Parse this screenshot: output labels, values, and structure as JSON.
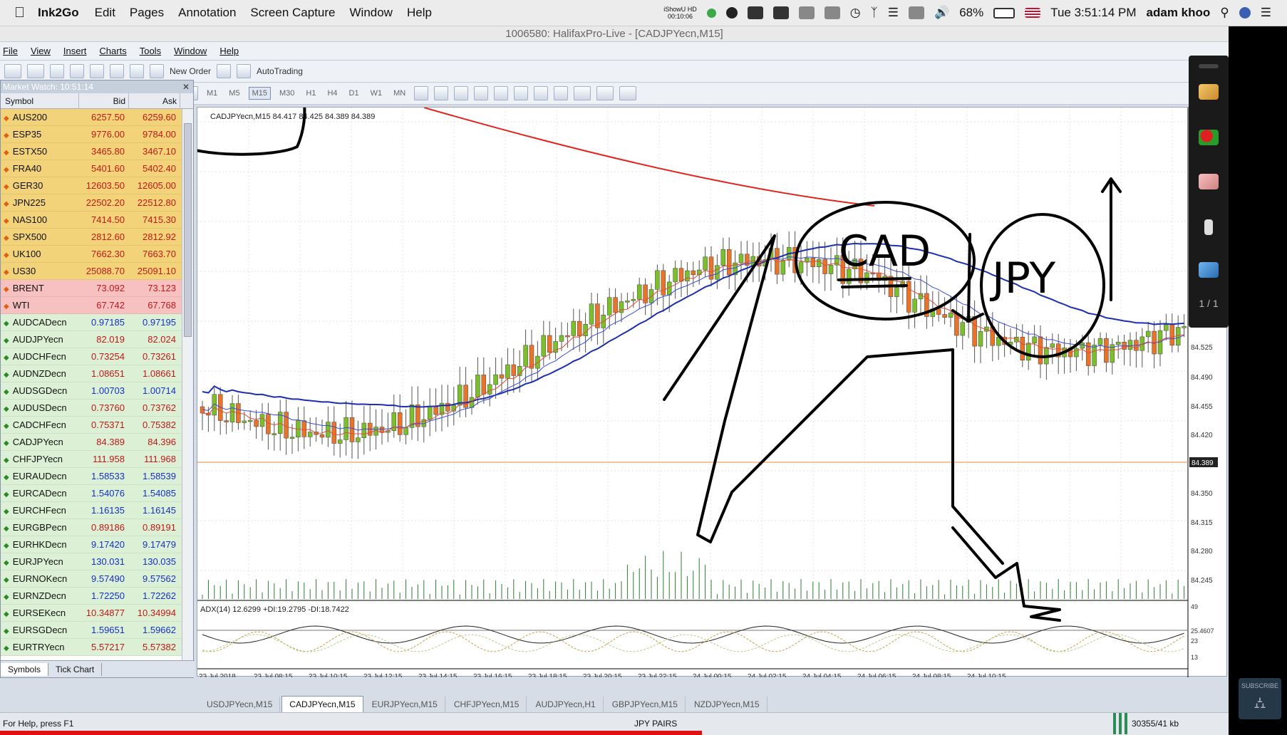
{
  "mac_menu": {
    "app_name": "Ink2Go",
    "items": [
      "Edit",
      "Pages",
      "Annotation",
      "Screen Capture",
      "Window",
      "Help"
    ],
    "showhd_label": "iShowU HD",
    "showhd_time": "00:10:06",
    "battery": "68%",
    "clock": "Tue 3:51:14 PM",
    "user": "adam khoo"
  },
  "window": {
    "title": "1006580: HalifaxPro-Live - [CADJPYecn,M15]"
  },
  "mt4_menu": [
    "File",
    "View",
    "Insert",
    "Charts",
    "Tools",
    "Window",
    "Help"
  ],
  "toolbar1": {
    "new_order": "New Order",
    "autotrading": "AutoTrading"
  },
  "toolbar2": {
    "periods": [
      "M1",
      "M5",
      "M15",
      "M30",
      "H1",
      "H4",
      "D1",
      "W1",
      "MN"
    ],
    "selected_period": "M15"
  },
  "market_watch": {
    "title": "Market Watch: 10:51:14",
    "columns": [
      "Symbol",
      "Bid",
      "Ask"
    ],
    "rows": [
      {
        "symbol": "AUS200",
        "bid": "6257.50",
        "ask": "6259.60",
        "type": "idx"
      },
      {
        "symbol": "ESP35",
        "bid": "9776.00",
        "ask": "9784.00",
        "type": "idx"
      },
      {
        "symbol": "ESTX50",
        "bid": "3465.80",
        "ask": "3467.10",
        "type": "idx"
      },
      {
        "symbol": "FRA40",
        "bid": "5401.60",
        "ask": "5402.40",
        "type": "idx"
      },
      {
        "symbol": "GER30",
        "bid": "12603.50",
        "ask": "12605.00",
        "type": "idx"
      },
      {
        "symbol": "JPN225",
        "bid": "22502.20",
        "ask": "22512.80",
        "type": "idx"
      },
      {
        "symbol": "NAS100",
        "bid": "7414.50",
        "ask": "7415.30",
        "type": "idx"
      },
      {
        "symbol": "SPX500",
        "bid": "2812.60",
        "ask": "2812.92",
        "type": "idx"
      },
      {
        "symbol": "UK100",
        "bid": "7662.30",
        "ask": "7663.70",
        "type": "idx"
      },
      {
        "symbol": "US30",
        "bid": "25088.70",
        "ask": "25091.10",
        "type": "idx"
      },
      {
        "symbol": "BRENT",
        "bid": "73.092",
        "ask": "73.123",
        "type": "cmd"
      },
      {
        "symbol": "WTI",
        "bid": "67.742",
        "ask": "67.768",
        "type": "cmd"
      },
      {
        "symbol": "AUDCADecn",
        "bid": "0.97185",
        "ask": "0.97195",
        "type": "fx"
      },
      {
        "symbol": "AUDJPYecn",
        "bid": "82.019",
        "ask": "82.024",
        "type": "fxr"
      },
      {
        "symbol": "AUDCHFecn",
        "bid": "0.73254",
        "ask": "0.73261",
        "type": "fxr"
      },
      {
        "symbol": "AUDNZDecn",
        "bid": "1.08651",
        "ask": "1.08661",
        "type": "fxr"
      },
      {
        "symbol": "AUDSGDecn",
        "bid": "1.00703",
        "ask": "1.00714",
        "type": "fx"
      },
      {
        "symbol": "AUDUSDecn",
        "bid": "0.73760",
        "ask": "0.73762",
        "type": "fxr"
      },
      {
        "symbol": "CADCHFecn",
        "bid": "0.75371",
        "ask": "0.75382",
        "type": "fxr"
      },
      {
        "symbol": "CADJPYecn",
        "bid": "84.389",
        "ask": "84.396",
        "type": "fxr"
      },
      {
        "symbol": "CHFJPYecn",
        "bid": "111.958",
        "ask": "111.968",
        "type": "fxr"
      },
      {
        "symbol": "EURAUDecn",
        "bid": "1.58533",
        "ask": "1.58539",
        "type": "fx"
      },
      {
        "symbol": "EURCADecn",
        "bid": "1.54076",
        "ask": "1.54085",
        "type": "fx"
      },
      {
        "symbol": "EURCHFecn",
        "bid": "1.16135",
        "ask": "1.16145",
        "type": "fx"
      },
      {
        "symbol": "EURGBPecn",
        "bid": "0.89186",
        "ask": "0.89191",
        "type": "fxr"
      },
      {
        "symbol": "EURHKDecn",
        "bid": "9.17420",
        "ask": "9.17479",
        "type": "fx"
      },
      {
        "symbol": "EURJPYecn",
        "bid": "130.031",
        "ask": "130.035",
        "type": "fx"
      },
      {
        "symbol": "EURNOKecn",
        "bid": "9.57490",
        "ask": "9.57562",
        "type": "fx"
      },
      {
        "symbol": "EURNZDecn",
        "bid": "1.72250",
        "ask": "1.72262",
        "type": "fx"
      },
      {
        "symbol": "EURSEKecn",
        "bid": "10.34877",
        "ask": "10.34994",
        "type": "fxr"
      },
      {
        "symbol": "EURSGDecn",
        "bid": "1.59651",
        "ask": "1.59662",
        "type": "fx"
      },
      {
        "symbol": "EURTRYecn",
        "bid": "5.57217",
        "ask": "5.57382",
        "type": "fxr"
      }
    ],
    "tabs": [
      "Symbols",
      "Tick Chart"
    ]
  },
  "chart": {
    "header": "CADJPYecn,M15  84.417 84.425 84.389 84.389",
    "current_price": "84.389",
    "price_ticks": [
      "84.525",
      "84.490",
      "84.455",
      "84.420",
      "84.350",
      "84.315",
      "84.280",
      "84.245"
    ],
    "time_ticks": [
      "23 Jul 2018",
      "23 Jul 08:15",
      "23 Jul 10:15",
      "23 Jul 12:15",
      "23 Jul 14:15",
      "23 Jul 16:15",
      "23 Jul 18:15",
      "23 Jul 20:15",
      "23 Jul 22:15",
      "24 Jul 00:15",
      "24 Jul 02:15",
      "24 Jul 04:15",
      "24 Jul 06:15",
      "24 Jul 08:15",
      "24 Jul 10:15"
    ],
    "adx_label": "ADX(14) 12.6299 +DI:19.2795 -DI:18.7422",
    "adx_ticks": [
      "49",
      "25.4607",
      "23",
      "13"
    ],
    "annotations": {
      "left": "CAD",
      "right": "JPY"
    }
  },
  "chart_tabs": [
    "USDJPYecn,M15",
    "CADJPYecn,M15",
    "EURJPYecn,M15",
    "CHFJPYecn,M15",
    "AUDJPYecn,H1",
    "GBPJPYecn,M15",
    "NZDJPYecn,M15"
  ],
  "active_chart_tab": 1,
  "status": {
    "help": "For Help, press F1",
    "profile": "JPY PAIRS",
    "traffic": "30355/41 kb"
  },
  "ink_toolbar": {
    "page": "1 / 1"
  },
  "subscribe": "SUBSCRIBE",
  "colors": {
    "bull": "#7bbf2a",
    "bear": "#e8742a",
    "ma_red": "#e3231b",
    "ma_blue": "#1b2fb0",
    "bg_chart": "#ffffff"
  }
}
